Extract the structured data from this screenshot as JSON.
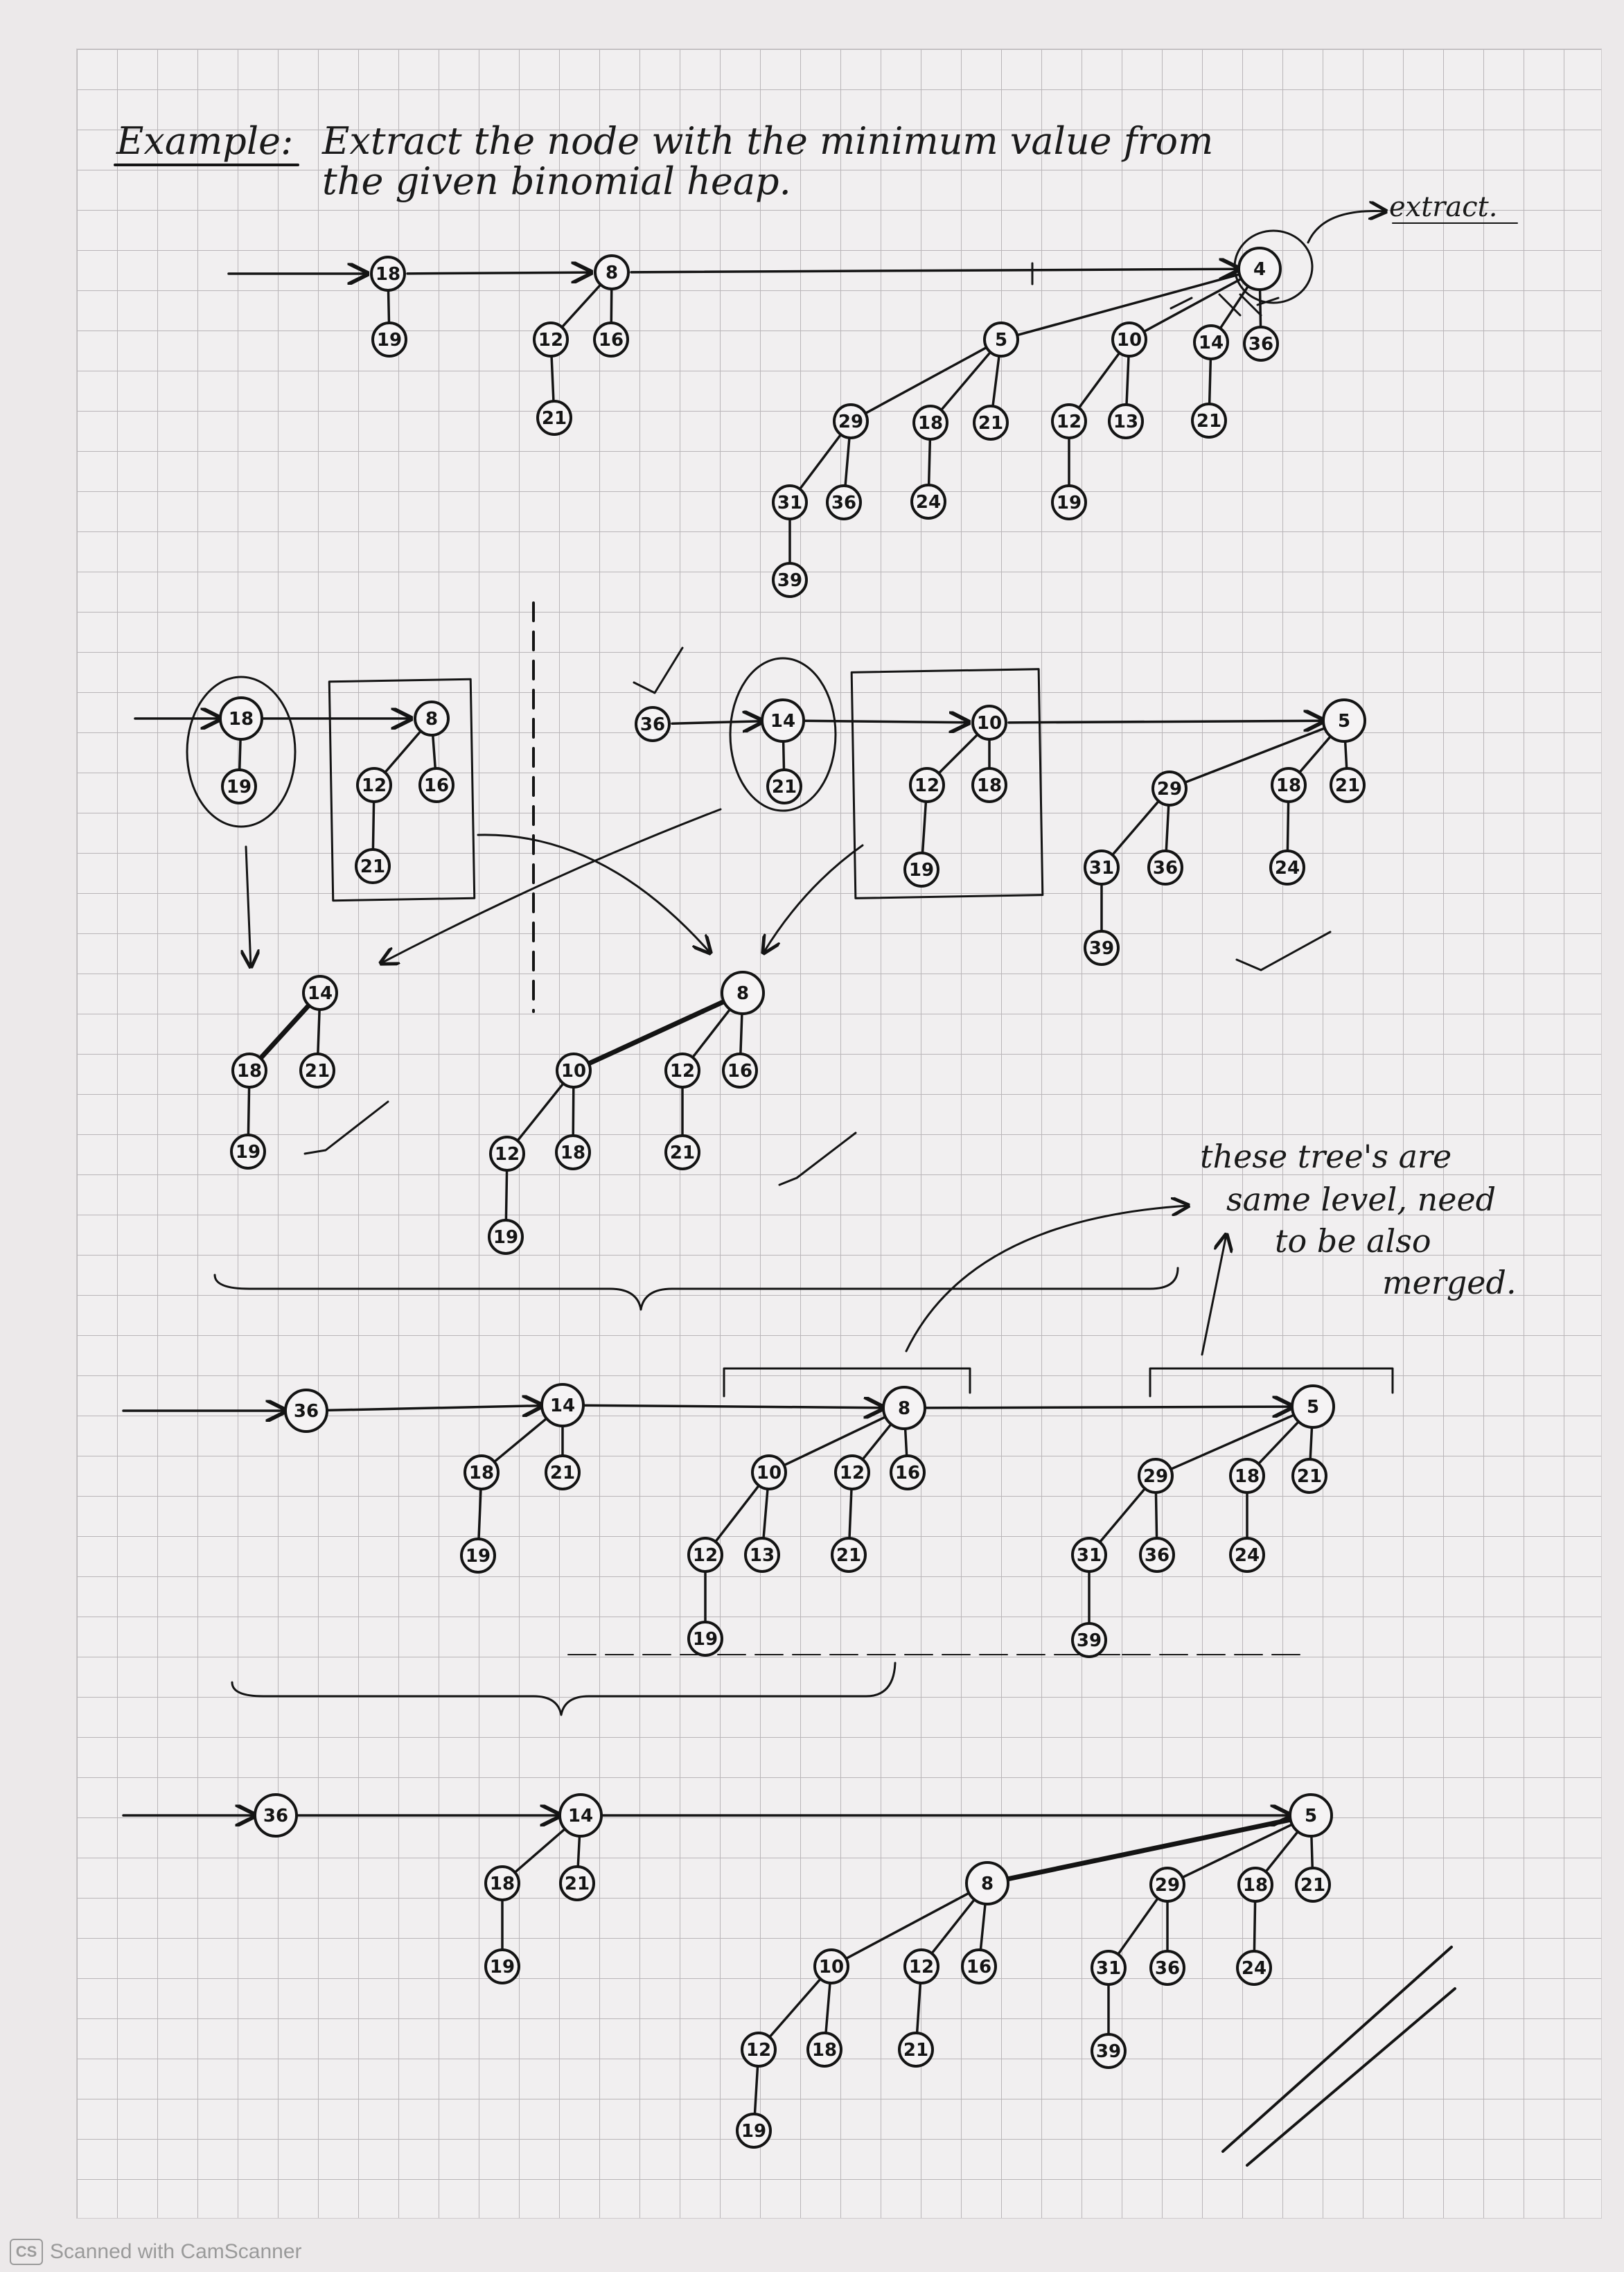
{
  "title": {
    "prefix": "Example:",
    "line1": "Extract the node with the minimum value from",
    "line2": "the given binomial heap."
  },
  "annotations": {
    "extract": "extract.",
    "merge_note": [
      "these tree's are",
      "same level, need",
      "to be also",
      "merged."
    ]
  },
  "footer": {
    "logo": "CS",
    "text": "Scanned with CamScanner"
  },
  "colors": {
    "ink": "#141414",
    "grid": "#b9b5b8",
    "paper": "#f1eff0"
  },
  "stages": [
    {
      "name": "original-heap",
      "nodes": [
        {
          "id": "a18",
          "v": "18"
        },
        {
          "id": "a19",
          "v": "19"
        },
        {
          "id": "a8",
          "v": "8"
        },
        {
          "id": "a12",
          "v": "12"
        },
        {
          "id": "a16",
          "v": "16"
        },
        {
          "id": "a21",
          "v": "21"
        },
        {
          "id": "a4",
          "v": "4"
        },
        {
          "id": "a5",
          "v": "5"
        },
        {
          "id": "a10",
          "v": "10"
        },
        {
          "id": "a14",
          "v": "14"
        },
        {
          "id": "a36",
          "v": "36"
        },
        {
          "id": "a29",
          "v": "29"
        },
        {
          "id": "a18b",
          "v": "18"
        },
        {
          "id": "a21b",
          "v": "21"
        },
        {
          "id": "a12b",
          "v": "12"
        },
        {
          "id": "a13",
          "v": "13"
        },
        {
          "id": "a21c",
          "v": "21"
        },
        {
          "id": "a31",
          "v": "31"
        },
        {
          "id": "a36b",
          "v": "36"
        },
        {
          "id": "a24",
          "v": "24"
        },
        {
          "id": "a19b",
          "v": "19"
        },
        {
          "id": "a39",
          "v": "39"
        }
      ]
    },
    {
      "name": "after-removing-minimum",
      "nodes": [
        {
          "id": "b18",
          "v": "18"
        },
        {
          "id": "b19",
          "v": "19"
        },
        {
          "id": "b8",
          "v": "8"
        },
        {
          "id": "b12",
          "v": "12"
        },
        {
          "id": "b16",
          "v": "16"
        },
        {
          "id": "b21",
          "v": "21"
        },
        {
          "id": "b36",
          "v": "36"
        },
        {
          "id": "b14",
          "v": "14"
        },
        {
          "id": "b21b",
          "v": "21"
        },
        {
          "id": "b10",
          "v": "10"
        },
        {
          "id": "b12b",
          "v": "12"
        },
        {
          "id": "b18b",
          "v": "18"
        },
        {
          "id": "b19b",
          "v": "19"
        },
        {
          "id": "b5",
          "v": "5"
        },
        {
          "id": "b29",
          "v": "29"
        },
        {
          "id": "b18c",
          "v": "18"
        },
        {
          "id": "b21c",
          "v": "21"
        },
        {
          "id": "b31",
          "v": "31"
        },
        {
          "id": "b36b",
          "v": "36"
        },
        {
          "id": "b24",
          "v": "24"
        },
        {
          "id": "b39",
          "v": "39"
        }
      ]
    },
    {
      "name": "merged-trees",
      "nodes": [
        {
          "id": "c14",
          "v": "14"
        },
        {
          "id": "c18",
          "v": "18"
        },
        {
          "id": "c21",
          "v": "21"
        },
        {
          "id": "c19",
          "v": "19"
        },
        {
          "id": "c8",
          "v": "8"
        },
        {
          "id": "c10",
          "v": "10"
        },
        {
          "id": "c12",
          "v": "12"
        },
        {
          "id": "c16",
          "v": "16"
        },
        {
          "id": "c12b",
          "v": "12"
        },
        {
          "id": "c18b",
          "v": "18"
        },
        {
          "id": "c21b",
          "v": "21"
        },
        {
          "id": "c19b",
          "v": "19"
        }
      ]
    },
    {
      "name": "root-list-after-merge",
      "nodes": [
        {
          "id": "d36",
          "v": "36"
        },
        {
          "id": "d14",
          "v": "14"
        },
        {
          "id": "d18",
          "v": "18"
        },
        {
          "id": "d21",
          "v": "21"
        },
        {
          "id": "d19",
          "v": "19"
        },
        {
          "id": "d8",
          "v": "8"
        },
        {
          "id": "d10",
          "v": "10"
        },
        {
          "id": "d12",
          "v": "12"
        },
        {
          "id": "d16",
          "v": "16"
        },
        {
          "id": "d12b",
          "v": "12"
        },
        {
          "id": "d13",
          "v": "13"
        },
        {
          "id": "d21b",
          "v": "21"
        },
        {
          "id": "d19b",
          "v": "19"
        },
        {
          "id": "d5",
          "v": "5"
        },
        {
          "id": "d29",
          "v": "29"
        },
        {
          "id": "d18b",
          "v": "18"
        },
        {
          "id": "d21c",
          "v": "21"
        },
        {
          "id": "d31",
          "v": "31"
        },
        {
          "id": "d36b",
          "v": "36"
        },
        {
          "id": "d24",
          "v": "24"
        },
        {
          "id": "d39",
          "v": "39"
        }
      ]
    },
    {
      "name": "final-heap",
      "nodes": [
        {
          "id": "e36",
          "v": "36"
        },
        {
          "id": "e14",
          "v": "14"
        },
        {
          "id": "e18",
          "v": "18"
        },
        {
          "id": "e21",
          "v": "21"
        },
        {
          "id": "e19",
          "v": "19"
        },
        {
          "id": "e5",
          "v": "5"
        },
        {
          "id": "e8",
          "v": "8"
        },
        {
          "id": "e29",
          "v": "29"
        },
        {
          "id": "e18b",
          "v": "18"
        },
        {
          "id": "e21b",
          "v": "21"
        },
        {
          "id": "e10",
          "v": "10"
        },
        {
          "id": "e12",
          "v": "12"
        },
        {
          "id": "e16",
          "v": "16"
        },
        {
          "id": "e31",
          "v": "31"
        },
        {
          "id": "e36b",
          "v": "36"
        },
        {
          "id": "e24",
          "v": "24"
        },
        {
          "id": "e12b",
          "v": "12"
        },
        {
          "id": "e18c",
          "v": "18"
        },
        {
          "id": "e21c",
          "v": "21"
        },
        {
          "id": "e39",
          "v": "39"
        },
        {
          "id": "e19b",
          "v": "19"
        }
      ]
    }
  ]
}
